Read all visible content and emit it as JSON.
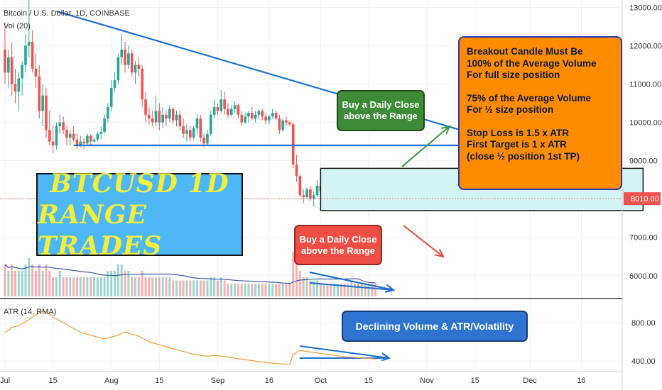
{
  "header": {
    "symbol": "Bitcoin / U.S. Dollar, 1D, COINBASE",
    "volume_indicator": "Vol (20)",
    "atr_indicator": "ATR (14, RMA)"
  },
  "banner": {
    "line1": "BTCUSD 1D",
    "line2": "RANGE TRADES"
  },
  "callouts": {
    "green": [
      "Buy a Daily Close",
      "above the Range"
    ],
    "red": [
      "Buy a Daily Close",
      "above the Range"
    ],
    "blue": "Declining Volume & ATR/Volatility"
  },
  "rules_box": [
    "Breakout Candle Must Be",
    "100% of the Average Volume",
    "For full size position",
    "",
    "75% of the Average Volume",
    "For ½ size position",
    "",
    "Stop Loss is 1.5 x ATR",
    "First Target is 1 x ATR",
    "(close ½ position 1st TP)"
  ],
  "colors": {
    "up": "#26a69a",
    "down": "#ef5350",
    "trendline": "#1e6fd1",
    "range_box": "#d3f3f5",
    "volume_ma": "#3a5ba8",
    "atr": "#f39c34",
    "price_label": "#ef5350",
    "green_callout": "#3d8b37",
    "red_callout": "#ef4e45",
    "blue_callout": "#2f73d0",
    "orange_box": "#ff8c00"
  },
  "chart_data": {
    "type": "candlestick",
    "price_axis": {
      "ticks": [
        "13000.00",
        "12000.00",
        "11000.00",
        "10000.00",
        "9000.00",
        "8000.00",
        "7000.00",
        "6000.00"
      ],
      "min": 5700,
      "max": 13100
    },
    "atr_axis": {
      "ticks": [
        "800.00",
        "400.00"
      ],
      "min": 320,
      "max": 1000
    },
    "current_price": "8010.00",
    "x_labels": [
      "Jul",
      "15",
      "Aug",
      "15",
      "Sep",
      "16",
      "Oct",
      "15",
      "Nov",
      "15",
      "Dec",
      "16"
    ],
    "x_label_days": [
      0,
      14,
      31,
      45,
      62,
      77,
      92,
      106,
      123,
      137,
      153,
      168
    ],
    "days_shown": 175,
    "candles": [
      [
        11900,
        12600,
        11000,
        11300
      ],
      [
        11300,
        11900,
        10900,
        11700
      ],
      [
        11700,
        12100,
        10700,
        11000
      ],
      [
        11000,
        11400,
        10500,
        10800
      ],
      [
        10800,
        11300,
        10300,
        11150
      ],
      [
        11150,
        11600,
        10700,
        11500
      ],
      [
        11500,
        12300,
        11300,
        12000
      ],
      [
        12000,
        13200,
        11700,
        12100
      ],
      [
        12100,
        12400,
        11300,
        11400
      ],
      [
        11400,
        11800,
        10900,
        11200
      ],
      [
        11200,
        11500,
        10100,
        10300
      ],
      [
        10300,
        11000,
        9900,
        10700
      ],
      [
        10700,
        10900,
        9600,
        9800
      ],
      [
        9800,
        10300,
        9400,
        9500
      ],
      [
        9500,
        9900,
        9200,
        9400
      ],
      [
        9400,
        10000,
        9300,
        9900
      ],
      [
        9900,
        10200,
        9700,
        10000
      ],
      [
        10000,
        10150,
        9700,
        9800
      ],
      [
        9800,
        9900,
        9400,
        9600
      ],
      [
        9600,
        9800,
        9400,
        9700
      ],
      [
        9700,
        9900,
        9500,
        9550
      ],
      [
        9550,
        9700,
        9300,
        9400
      ],
      [
        9400,
        9650,
        9350,
        9500
      ],
      [
        9500,
        9600,
        9300,
        9450
      ],
      [
        9450,
        9700,
        9400,
        9650
      ],
      [
        9650,
        9700,
        9400,
        9500
      ],
      [
        9500,
        9600,
        9450,
        9550
      ],
      [
        9550,
        9750,
        9500,
        9700
      ],
      [
        9700,
        9900,
        9550,
        9750
      ],
      [
        9750,
        10200,
        9700,
        10100
      ],
      [
        10100,
        10500,
        10000,
        10400
      ],
      [
        10400,
        11100,
        10300,
        10900
      ],
      [
        10900,
        11300,
        10800,
        11100
      ],
      [
        11100,
        11800,
        11000,
        11700
      ],
      [
        11700,
        12300,
        11500,
        11900
      ],
      [
        11900,
        12100,
        11300,
        11500
      ],
      [
        11500,
        12000,
        11400,
        11800
      ],
      [
        11800,
        11900,
        11200,
        11300
      ],
      [
        11300,
        11600,
        11000,
        11500
      ],
      [
        11500,
        11700,
        11200,
        11400
      ],
      [
        11400,
        11500,
        10400,
        10600
      ],
      [
        10600,
        10800,
        10000,
        10200
      ],
      [
        10200,
        10400,
        9950,
        10100
      ],
      [
        10100,
        10300,
        9900,
        10000
      ],
      [
        10000,
        10700,
        9900,
        10300
      ],
      [
        10300,
        10500,
        9800,
        10000
      ],
      [
        10000,
        10400,
        9850,
        10200
      ],
      [
        10200,
        10300,
        9900,
        10100
      ],
      [
        10100,
        10450,
        10000,
        10350
      ],
      [
        10350,
        10400,
        9950,
        10050
      ],
      [
        10050,
        10300,
        9900,
        10200
      ],
      [
        10200,
        10300,
        9800,
        9900
      ],
      [
        9900,
        10100,
        9600,
        9700
      ],
      [
        9700,
        9950,
        9500,
        9800
      ],
      [
        9800,
        9900,
        9500,
        9600
      ],
      [
        9600,
        9900,
        9550,
        9850
      ],
      [
        9850,
        10200,
        9700,
        10100
      ],
      [
        10100,
        10200,
        9500,
        9600
      ],
      [
        9600,
        9700,
        9350,
        9450
      ],
      [
        9450,
        9800,
        9400,
        9700
      ],
      [
        9700,
        10300,
        9650,
        10200
      ],
      [
        10200,
        10600,
        10100,
        10400
      ],
      [
        10400,
        10500,
        10200,
        10300
      ],
      [
        10300,
        10850,
        10250,
        10600
      ],
      [
        10600,
        10800,
        10200,
        10350
      ],
      [
        10350,
        10500,
        10100,
        10200
      ],
      [
        10200,
        10450,
        10150,
        10350
      ],
      [
        10350,
        10550,
        10250,
        10450
      ],
      [
        10450,
        10500,
        10100,
        10200
      ],
      [
        10200,
        10300,
        9900,
        10000
      ],
      [
        10000,
        10250,
        9950,
        10150
      ],
      [
        10150,
        10300,
        10000,
        10250
      ],
      [
        10250,
        10400,
        10050,
        10100
      ],
      [
        10100,
        10300,
        10000,
        10200
      ],
      [
        10200,
        10350,
        10100,
        10300
      ],
      [
        10300,
        10350,
        10050,
        10150
      ],
      [
        10150,
        10250,
        9950,
        10050
      ],
      [
        10050,
        10200,
        9950,
        10150
      ],
      [
        10150,
        10350,
        10100,
        10250
      ],
      [
        10250,
        10300,
        10050,
        10100
      ],
      [
        10100,
        10200,
        9700,
        9800
      ],
      [
        9800,
        10100,
        9750,
        10050
      ],
      [
        10050,
        10150,
        9900,
        10000
      ],
      [
        10000,
        10050,
        9900,
        9950
      ],
      [
        9950,
        10000,
        8800,
        8900
      ],
      [
        8900,
        9150,
        8450,
        8600
      ],
      [
        8600,
        8650,
        8050,
        8100
      ],
      [
        8100,
        8250,
        7900,
        8050
      ],
      [
        8050,
        8300,
        8000,
        8250
      ],
      [
        8250,
        8350,
        7950,
        8000
      ],
      [
        8000,
        8200,
        7800,
        8100
      ],
      [
        8100,
        8500,
        8050,
        8350
      ],
      [
        8350,
        8450,
        8150,
        8200
      ],
      [
        8200,
        8400,
        8100,
        8300
      ],
      [
        8300,
        8450,
        8100,
        8150
      ],
      [
        8150,
        8300,
        7900,
        7950
      ],
      [
        7950,
        8100,
        7800,
        8050
      ],
      [
        8050,
        8400,
        8000,
        8350
      ],
      [
        8350,
        8400,
        8150,
        8250
      ],
      [
        8250,
        8300,
        8100,
        8150
      ],
      [
        8150,
        8250,
        7950,
        8000
      ],
      [
        8000,
        8700,
        7950,
        8600
      ],
      [
        8600,
        8750,
        8350,
        8400
      ],
      [
        8400,
        8500,
        8200,
        8300
      ],
      [
        8300,
        8550,
        8250,
        8500
      ],
      [
        8500,
        8550,
        8200,
        8250
      ],
      [
        8250,
        8400,
        8150,
        8350
      ],
      [
        8350,
        8400,
        8000,
        8050
      ],
      [
        8050,
        8100,
        7850,
        7950
      ]
    ],
    "volume_bars": [
      5,
      4,
      5,
      4,
      4,
      4,
      5,
      6,
      5,
      4,
      5,
      4,
      5,
      4,
      3,
      3,
      4,
      3,
      3,
      3,
      3,
      3,
      3,
      3,
      3,
      3,
      3,
      3,
      3,
      3,
      4,
      4,
      4,
      5,
      5,
      4,
      4,
      3,
      3,
      3,
      4,
      3,
      3,
      3,
      3,
      3,
      3,
      3,
      3,
      2.5,
      2.5,
      2.5,
      2.5,
      2.5,
      2.5,
      2.5,
      2.5,
      2.5,
      2.5,
      2.5,
      3,
      3,
      2.5,
      3,
      2.5,
      2,
      2,
      2,
      2,
      2,
      2,
      2,
      2,
      2,
      2,
      2,
      2,
      2,
      2,
      2,
      2,
      2,
      2,
      2,
      7,
      6,
      4,
      3,
      3,
      2.5,
      2.5,
      2.5,
      2,
      2,
      2,
      2,
      2,
      2,
      2,
      2,
      2,
      2.5,
      2,
      2,
      2,
      2,
      2,
      2,
      2
    ],
    "atr_values": [
      700,
      720,
      750,
      760,
      770,
      790,
      810,
      830,
      860,
      880,
      900,
      920,
      910,
      890,
      860,
      840,
      820,
      800,
      780,
      760,
      740,
      720,
      700,
      690,
      680,
      670,
      660,
      650,
      640,
      630,
      640,
      650,
      660,
      670,
      690,
      700,
      690,
      680,
      670,
      660,
      640,
      620,
      600,
      590,
      580,
      570,
      560,
      550,
      540,
      530,
      520,
      510,
      500,
      490,
      480,
      470,
      465,
      460,
      455,
      450,
      455,
      460,
      455,
      450,
      445,
      440,
      435,
      430,
      425,
      420,
      415,
      410,
      405,
      400,
      395,
      390,
      385,
      380,
      378,
      375,
      372,
      370,
      368,
      365,
      470,
      490,
      510,
      505,
      500,
      495,
      490,
      485,
      480,
      475,
      470,
      465,
      460,
      455,
      450,
      445,
      442,
      440,
      438,
      435,
      432,
      430,
      428,
      425,
      420
    ],
    "descending_trendline": {
      "from_day": 15,
      "from_price": 12900,
      "to_day": 148,
      "to_price": 9400
    },
    "support_line": {
      "from_day": 20,
      "to_day": 148,
      "price": 9400
    },
    "range": {
      "from_day": 92,
      "to_day": 186,
      "low": 7700,
      "high": 8800
    }
  }
}
